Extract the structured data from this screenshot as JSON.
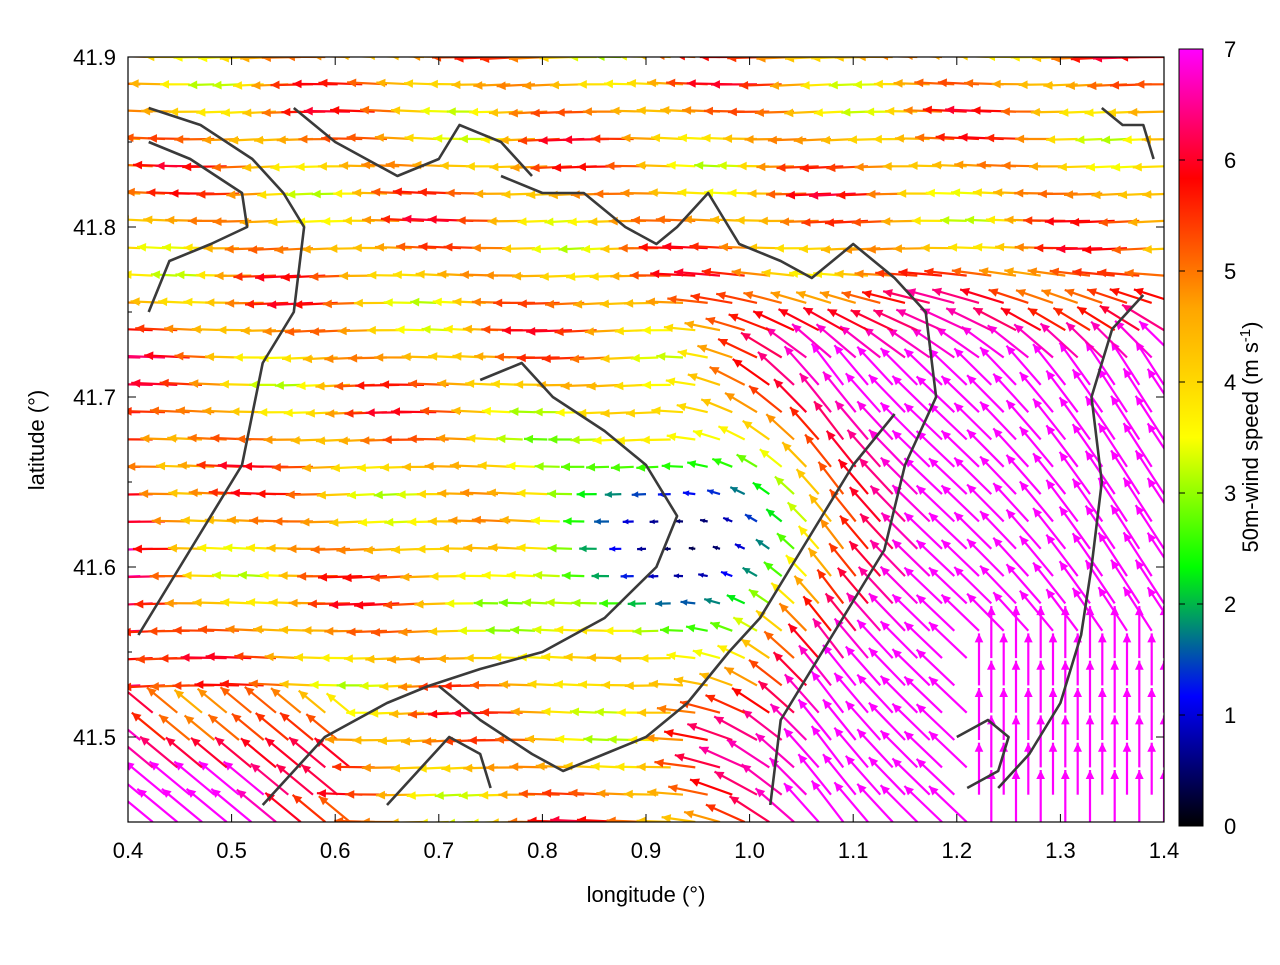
{
  "chart_data": {
    "type": "vector-field",
    "title": "",
    "xlabel": "longitude (°)",
    "ylabel": "latitude (°)",
    "xlim": [
      0.4,
      1.4
    ],
    "ylim": [
      41.45,
      41.9
    ],
    "xticks": [
      "0.4",
      "0.5",
      "0.6",
      "0.7",
      "0.8",
      "0.9",
      "1.0",
      "1.1",
      "1.2",
      "1.3",
      "1.4"
    ],
    "yticks": [
      "41.5",
      "41.6",
      "41.7",
      "41.8",
      "41.9"
    ],
    "colorbar": {
      "label_main": "50m-wind speed (m s",
      "label_sup": "-1",
      "label_close": ")",
      "range": [
        0,
        7
      ],
      "ticks": [
        "0",
        "1",
        "2",
        "3",
        "4",
        "5",
        "6",
        "7"
      ],
      "palette": [
        "#000000",
        "#0000ff",
        "#00ff00",
        "#ffff00",
        "#ffa500",
        "#ff0000",
        "#ff00ff"
      ]
    },
    "grid": false,
    "legend": "colorbar-right",
    "field_summary": {
      "calm_zone": {
        "lon": [
          0.82,
          1.08
        ],
        "lat": [
          41.56,
          41.67
        ],
        "speed": [
          0,
          1
        ]
      },
      "easterly_band": {
        "lon": [
          0.4,
          0.9
        ],
        "lat": [
          41.55,
          41.9
        ],
        "speed": [
          3,
          6
        ]
      },
      "strong_southeasterly": {
        "lon": [
          0.9,
          1.4
        ],
        "lat": [
          41.45,
          41.78
        ],
        "speed": [
          6,
          7
        ]
      },
      "coastal_northeast": {
        "lon": [
          1.0,
          1.4
        ],
        "lat": [
          41.78,
          41.9
        ],
        "speed": [
          4,
          6
        ]
      }
    },
    "contour_lines": [
      [
        [
          0.42,
          41.87
        ],
        [
          0.47,
          41.86
        ],
        [
          0.52,
          41.84
        ],
        [
          0.55,
          41.82
        ],
        [
          0.57,
          41.8
        ],
        [
          0.56,
          41.75
        ],
        [
          0.53,
          41.72
        ],
        [
          0.51,
          41.66
        ],
        [
          0.47,
          41.62
        ],
        [
          0.43,
          41.58
        ],
        [
          0.41,
          41.56
        ]
      ],
      [
        [
          0.42,
          41.85
        ],
        [
          0.46,
          41.84
        ],
        [
          0.51,
          41.82
        ],
        [
          0.515,
          41.8
        ],
        [
          0.48,
          41.79
        ],
        [
          0.44,
          41.78
        ],
        [
          0.42,
          41.75
        ]
      ],
      [
        [
          0.56,
          41.87
        ],
        [
          0.6,
          41.85
        ],
        [
          0.63,
          41.84
        ],
        [
          0.66,
          41.83
        ],
        [
          0.7,
          41.84
        ],
        [
          0.72,
          41.86
        ],
        [
          0.76,
          41.85
        ],
        [
          0.79,
          41.83
        ]
      ],
      [
        [
          0.76,
          41.83
        ],
        [
          0.8,
          41.82
        ],
        [
          0.84,
          41.82
        ],
        [
          0.88,
          41.8
        ],
        [
          0.91,
          41.79
        ],
        [
          0.93,
          41.8
        ],
        [
          0.96,
          41.82
        ],
        [
          0.99,
          41.79
        ],
        [
          1.03,
          41.78
        ],
        [
          1.06,
          41.77
        ],
        [
          1.1,
          41.79
        ],
        [
          1.14,
          41.77
        ],
        [
          1.17,
          41.75
        ],
        [
          1.18,
          41.7
        ],
        [
          1.15,
          41.66
        ],
        [
          1.13,
          41.61
        ],
        [
          1.08,
          41.56
        ],
        [
          1.03,
          41.51
        ],
        [
          1.02,
          41.46
        ]
      ],
      [
        [
          0.74,
          41.71
        ],
        [
          0.78,
          41.72
        ],
        [
          0.81,
          41.7
        ],
        [
          0.86,
          41.68
        ],
        [
          0.9,
          41.66
        ],
        [
          0.93,
          41.63
        ],
        [
          0.91,
          41.6
        ],
        [
          0.86,
          41.57
        ],
        [
          0.8,
          41.55
        ],
        [
          0.74,
          41.54
        ],
        [
          0.69,
          41.53
        ],
        [
          0.65,
          41.52
        ],
        [
          0.59,
          41.5
        ],
        [
          0.53,
          41.46
        ]
      ],
      [
        [
          0.7,
          41.53
        ],
        [
          0.74,
          41.51
        ],
        [
          0.79,
          41.49
        ],
        [
          0.82,
          41.48
        ],
        [
          0.86,
          41.49
        ],
        [
          0.9,
          41.5
        ],
        [
          0.94,
          41.52
        ],
        [
          0.98,
          41.55
        ],
        [
          1.01,
          41.57
        ],
        [
          1.04,
          41.6
        ],
        [
          1.07,
          41.63
        ],
        [
          1.1,
          41.66
        ],
        [
          1.14,
          41.69
        ]
      ],
      [
        [
          1.24,
          41.47
        ],
        [
          1.27,
          41.49
        ],
        [
          1.3,
          41.52
        ],
        [
          1.32,
          41.56
        ],
        [
          1.33,
          41.6
        ],
        [
          1.34,
          41.65
        ],
        [
          1.33,
          41.7
        ],
        [
          1.35,
          41.74
        ],
        [
          1.38,
          41.76
        ]
      ],
      [
        [
          0.65,
          41.46
        ],
        [
          0.68,
          41.48
        ],
        [
          0.71,
          41.5
        ],
        [
          0.74,
          41.49
        ],
        [
          0.75,
          41.47
        ]
      ],
      [
        [
          1.2,
          41.5
        ],
        [
          1.23,
          41.51
        ],
        [
          1.25,
          41.5
        ],
        [
          1.24,
          41.48
        ],
        [
          1.21,
          41.47
        ]
      ],
      [
        [
          1.34,
          41.87
        ],
        [
          1.36,
          41.86
        ],
        [
          1.38,
          41.86
        ],
        [
          1.39,
          41.84
        ]
      ]
    ]
  }
}
